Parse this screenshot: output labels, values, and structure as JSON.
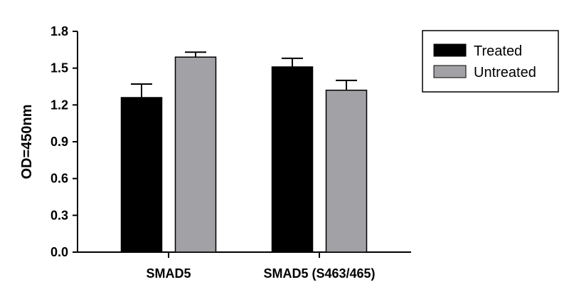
{
  "chart_data": {
    "type": "bar",
    "title": "",
    "xlabel": "",
    "ylabel": "OD=450nm",
    "categories": [
      "SMAD5",
      "SMAD5 (S463/465)"
    ],
    "series": [
      {
        "name": "Treated",
        "color": "#000000",
        "values": [
          1.26,
          1.51
        ],
        "errors": [
          0.11,
          0.07
        ]
      },
      {
        "name": "Untreated",
        "color": "#a2a2a6",
        "values": [
          1.59,
          1.32
        ],
        "errors": [
          0.04,
          0.08
        ]
      }
    ],
    "ylim": [
      0,
      1.8
    ],
    "yticks": [
      "0.0",
      "0.3",
      "0.6",
      "0.9",
      "1.2",
      "1.5",
      "1.8"
    ],
    "grid": false,
    "legend_position": "top-right"
  }
}
